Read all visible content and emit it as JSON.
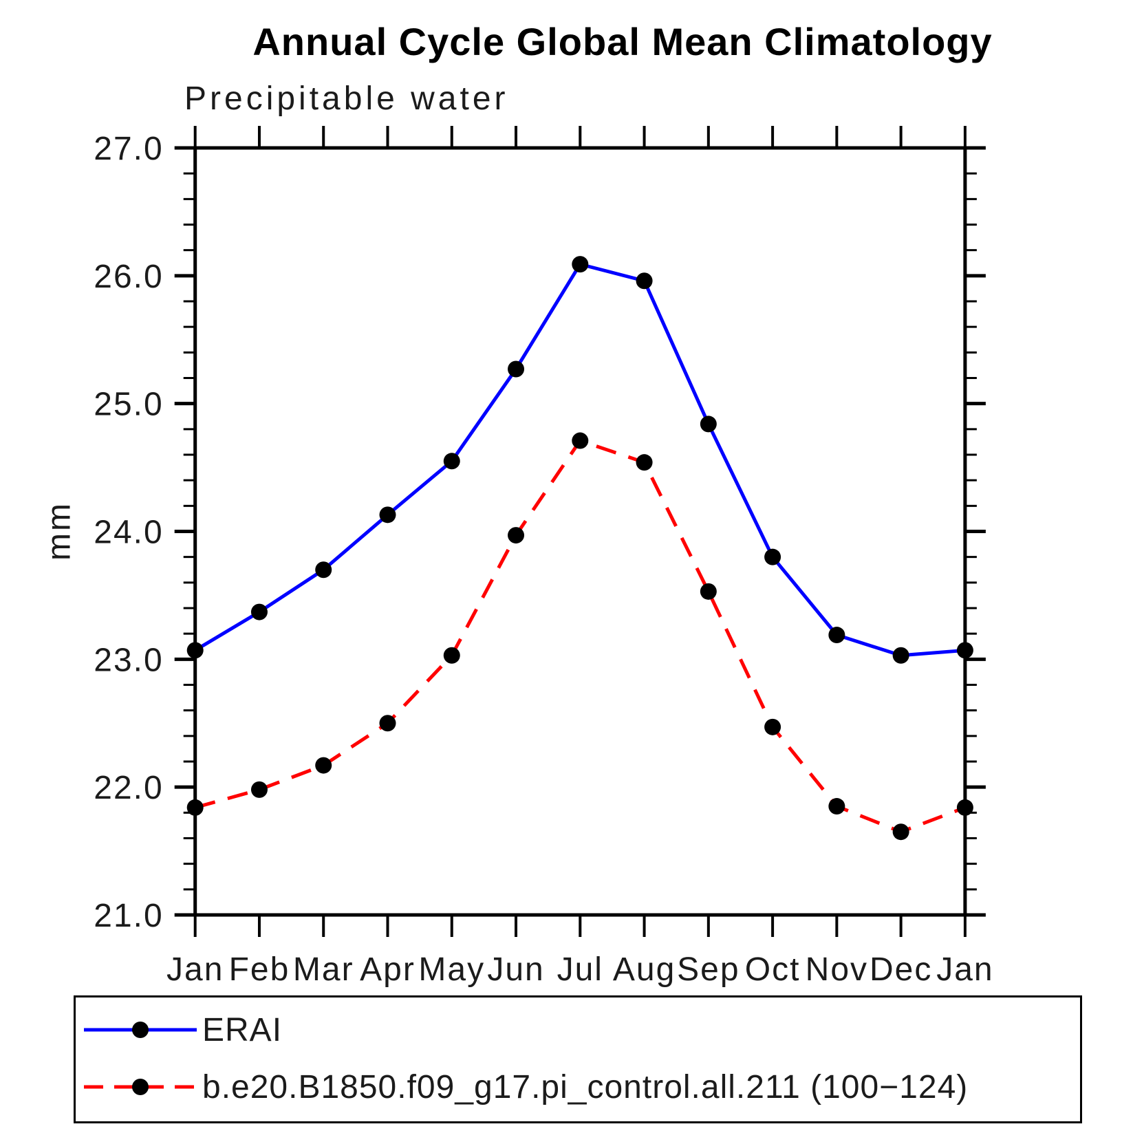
{
  "chart_data": {
    "type": "line",
    "title": "Annual Cycle Global Mean Climatology",
    "subtitle": "Precipitable water",
    "ylabel": "mm",
    "ylim": [
      21.0,
      27.0
    ],
    "ytick_step": 1.0,
    "yminor_step": 0.2,
    "ytick_labels": [
      "21.0",
      "22.0",
      "23.0",
      "24.0",
      "25.0",
      "26.0",
      "27.0"
    ],
    "categories": [
      "Jan",
      "Feb",
      "Mar",
      "Apr",
      "May",
      "Jun",
      "Jul",
      "Aug",
      "Sep",
      "Oct",
      "Nov",
      "Dec",
      "Jan"
    ],
    "grid": false,
    "legend_position": "bottom",
    "axis_color": "#000000",
    "series": [
      {
        "name": "ERAI",
        "line_color": "#0000ff",
        "line_style": "solid",
        "marker": "dot",
        "marker_color": "#000000",
        "values": [
          23.07,
          23.37,
          23.7,
          24.13,
          24.55,
          25.27,
          26.09,
          25.96,
          24.84,
          23.8,
          23.19,
          23.03,
          23.07
        ]
      },
      {
        "name": "b.e20.B1850.f09_g17.pi_control.all.211 (100−124)",
        "line_color": "#ff0000",
        "line_style": "dashed",
        "marker": "dot",
        "marker_color": "#000000",
        "values": [
          21.84,
          21.98,
          22.17,
          22.5,
          23.03,
          23.97,
          24.71,
          24.54,
          23.53,
          22.47,
          21.85,
          21.65,
          21.84
        ]
      }
    ]
  }
}
